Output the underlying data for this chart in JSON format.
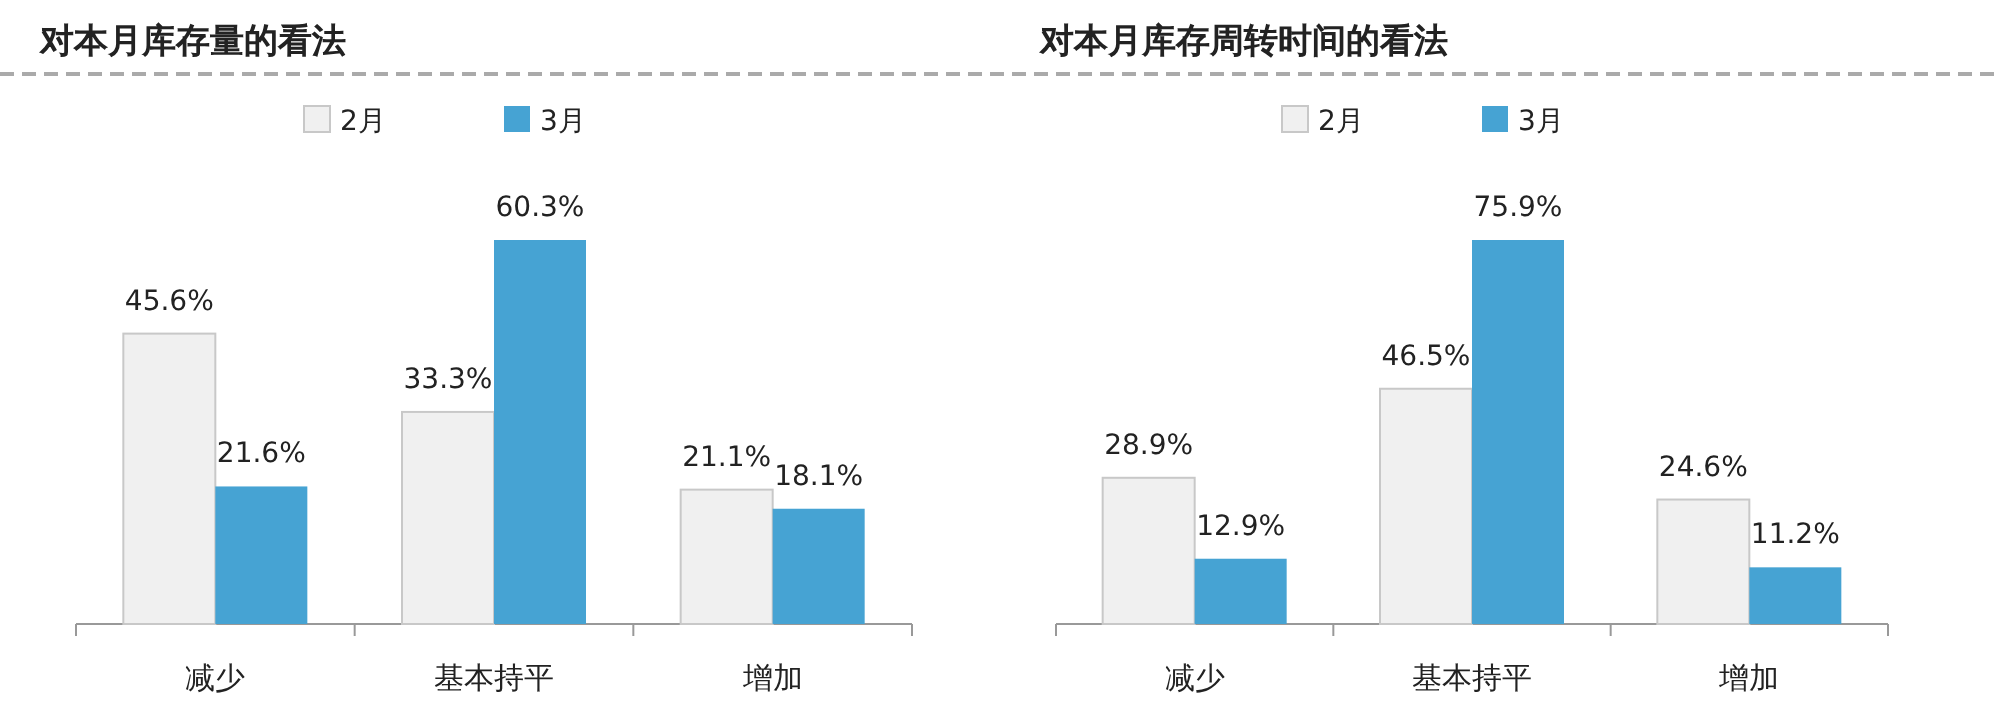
{
  "chart_data": [
    {
      "type": "bar",
      "title": "对本月库存量的看法",
      "categories": [
        "减少",
        "基本持平",
        "增加"
      ],
      "series": [
        {
          "name": "2月",
          "color": "#f0f0f0",
          "values": [
            45.6,
            33.3,
            21.1
          ],
          "value_labels": [
            "45.6%",
            "33.3%",
            "21.1%"
          ]
        },
        {
          "name": "3月",
          "color": "#46a3d3",
          "values": [
            21.6,
            60.3,
            18.1
          ],
          "value_labels": [
            "21.6%",
            "60.3%",
            "18.1%"
          ]
        }
      ],
      "legend": "top"
    },
    {
      "type": "bar",
      "title": "对本月库存周转时间的看法",
      "categories": [
        "减少",
        "基本持平",
        "增加"
      ],
      "series": [
        {
          "name": "2月",
          "color": "#f0f0f0",
          "values": [
            28.9,
            46.5,
            24.6
          ],
          "value_labels": [
            "28.9%",
            "46.5%",
            "24.6%"
          ]
        },
        {
          "name": "3月",
          "color": "#46a3d3",
          "values": [
            12.9,
            75.9,
            11.2
          ],
          "value_labels": [
            "12.9%",
            "75.9%",
            "11.2%"
          ]
        }
      ],
      "legend": "top"
    }
  ]
}
